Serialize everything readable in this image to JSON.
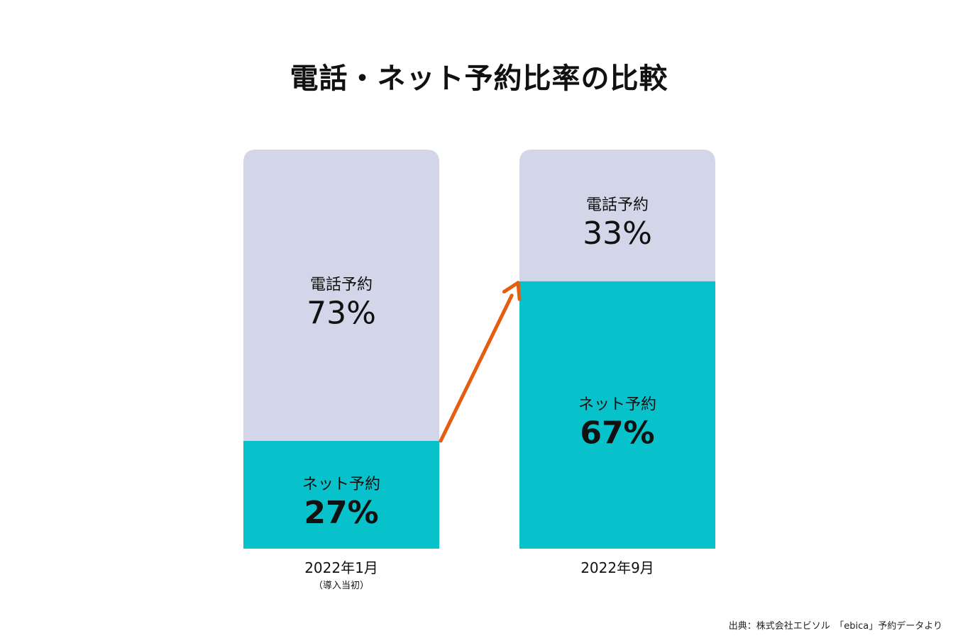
{
  "title": "電話・ネット予約比率の比較",
  "colors": {
    "phone": "#d2d6e8",
    "net": "#08c2cb",
    "arrow": "#e45e10",
    "text": "#111111"
  },
  "chart_data": {
    "type": "bar",
    "stacked": true,
    "categories": [
      "2022年1月",
      "2022年9月"
    ],
    "category_notes": [
      "（導入当初）",
      ""
    ],
    "series": [
      {
        "name": "ネット予約",
        "values": [
          27,
          67
        ],
        "labels": [
          "27%",
          "67%"
        ]
      },
      {
        "name": "電話予約",
        "values": [
          73,
          33
        ],
        "labels": [
          "73%",
          "33%"
        ]
      }
    ],
    "ylim": [
      0,
      100
    ],
    "annotation": "arrow"
  },
  "source": "出典：株式会社エビソル　「ebica」予約データより"
}
